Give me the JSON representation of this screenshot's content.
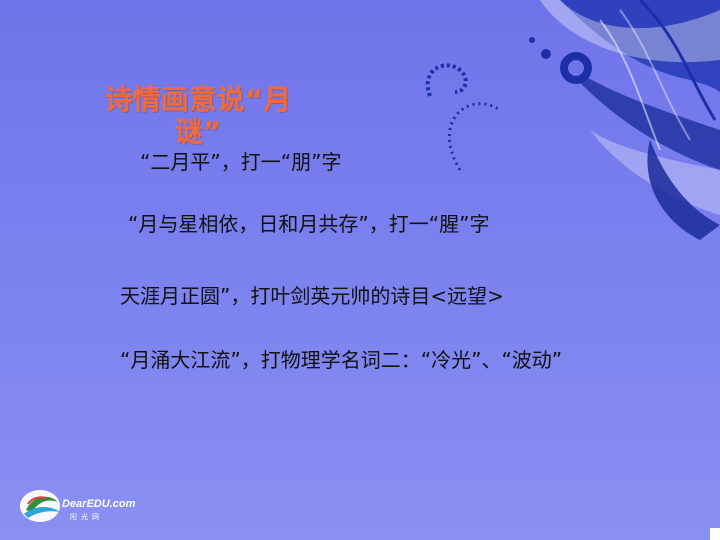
{
  "slide": {
    "title": "诗情画意说“月谜”",
    "riddles": [
      "“二月平”，打一“朋”字",
      "“月与星相依，日和月共存”，打一“腥”字",
      "天涯月正圆”，打叶剑英元帅的诗目<远望>",
      "“月涌大江流”，打物理学名词二：“冷光”、“波动”"
    ]
  },
  "logo": {
    "text": "DearEDU.com",
    "subtext": "阳光网"
  },
  "colors": {
    "background": "#7a80ee",
    "title": "#f36a3a",
    "ornament": "#1a2fa8",
    "text": "#111111"
  }
}
